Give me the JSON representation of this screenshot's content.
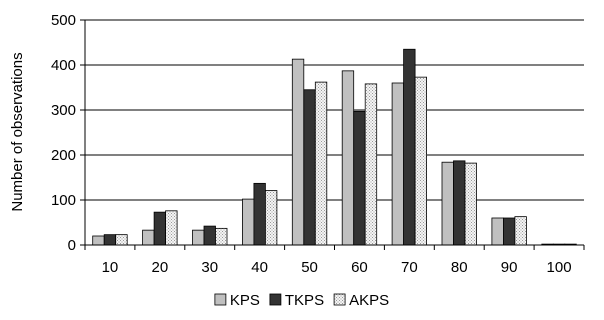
{
  "chart_data": {
    "type": "bar",
    "title": "",
    "xlabel": "",
    "ylabel": "Number of observations",
    "ylim": [
      0,
      500
    ],
    "yticks": [
      0,
      100,
      200,
      300,
      400,
      500
    ],
    "grid": true,
    "legend_position": "bottom",
    "categories": [
      "10",
      "20",
      "30",
      "40",
      "50",
      "60",
      "70",
      "80",
      "90",
      "100"
    ],
    "series": [
      {
        "name": "KPS",
        "color": "#c0c0c0",
        "pattern": "solid",
        "values": [
          20,
          33,
          33,
          102,
          413,
          387,
          360,
          184,
          60,
          2
        ]
      },
      {
        "name": "TKPS",
        "color": "#333333",
        "pattern": "solid",
        "values": [
          23,
          73,
          42,
          137,
          345,
          297,
          435,
          187,
          60,
          2
        ]
      },
      {
        "name": "AKPS",
        "color": "#e4e4e4",
        "pattern": "dotted",
        "values": [
          23,
          76,
          37,
          121,
          362,
          358,
          373,
          182,
          63,
          2
        ]
      }
    ]
  }
}
